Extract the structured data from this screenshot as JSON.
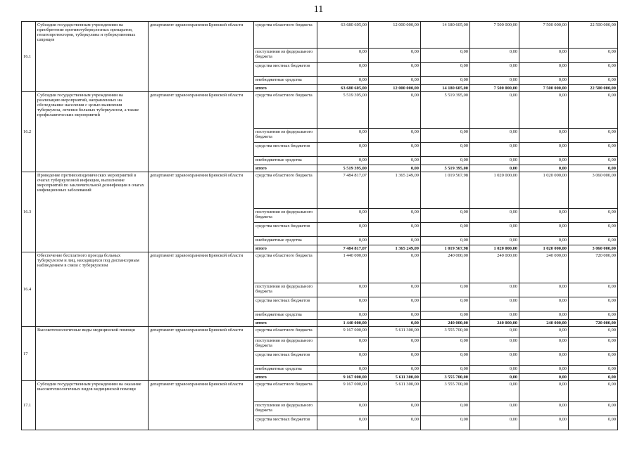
{
  "page_number": "11",
  "table": {
    "rows": [
      {
        "num": "16.1",
        "name": "Субсидии государственным учреждениям на приобретение противотуберкулезных препаратов, гепатопротекторов, туберкулина и туберкулиновых шприцев",
        "org": "департамент здравоохранения Брянской области",
        "lines": [
          {
            "source": "средства областного бюджета",
            "values": [
              "63 680 605,00",
              "12 000 000,00",
              "14 180 605,00",
              "7 500 000,00",
              "7 500 000,00",
              "22 500 000,00"
            ]
          },
          {
            "source": "поступления из федерального бюджета",
            "values": [
              "0,00",
              "0,00",
              "0,00",
              "0,00",
              "0,00",
              "0,00"
            ]
          },
          {
            "source": "средства местных бюджетов",
            "values": [
              "0,00",
              "0,00",
              "0,00",
              "0,00",
              "0,00",
              "0,00"
            ]
          },
          {
            "source": "внебюджетные средства",
            "values": [
              "0,00",
              "0,00",
              "0,00",
              "0,00",
              "0,00",
              "0,00"
            ]
          },
          {
            "source": "итого",
            "values": [
              "63 680 605,00",
              "12 000 000,00",
              "14 180 605,00",
              "7 500 000,00",
              "7 500 000,00",
              "22 500 000,00"
            ]
          }
        ]
      },
      {
        "num": "16.2",
        "name": "Субсидии государственным учреждениям на реализацию мероприятий, направленных на обследование населения с целью выявления туберкулеза, лечения больных туберкулезом, а также профилактических мероприятий",
        "org": "департамент здравоохранения Брянской области",
        "lines": [
          {
            "source": "средства областного бюджета",
            "values": [
              "5 519 395,00",
              "0,00",
              "5 519 395,00",
              "0,00",
              "0,00",
              "0,00"
            ]
          },
          {
            "source": "поступления из федерального бюджета",
            "values": [
              "0,00",
              "0,00",
              "0,00",
              "0,00",
              "0,00",
              "0,00"
            ]
          },
          {
            "source": "средства местных бюджетов",
            "values": [
              "0,00",
              "0,00",
              "0,00",
              "0,00",
              "0,00",
              "0,00"
            ]
          },
          {
            "source": "внебюджетные средства",
            "values": [
              "0,00",
              "0,00",
              "0,00",
              "0,00",
              "0,00",
              "0,00"
            ]
          },
          {
            "source": "итого",
            "values": [
              "5 519 395,00",
              "0,00",
              "5 519 395,00",
              "0,00",
              "0,00",
              "0,00"
            ]
          }
        ]
      },
      {
        "num": "16.3",
        "name": "Проведение противоэпидемических мероприятий в очагах туберкулезной инфекции, выполнение мероприятий по заключительной дезинфекции в очагах инфекционных заболеваний",
        "org": "департамент здравоохранения Брянской области",
        "lines": [
          {
            "source": "средства областного бюджета",
            "values": [
              "7 484 817,07",
              "1 365 249,09",
              "1 019 567,98",
              "1 020 000,00",
              "1 020 000,00",
              "3 060 000,00"
            ]
          },
          {
            "source": "поступления из федерального бюджета",
            "values": [
              "0,00",
              "0,00",
              "0,00",
              "0,00",
              "0,00",
              "0,00"
            ]
          },
          {
            "source": "средства местных бюджетов",
            "values": [
              "0,00",
              "0,00",
              "0,00",
              "0,00",
              "0,00",
              "0,00"
            ]
          },
          {
            "source": "внебюджетные средства",
            "values": [
              "0,00",
              "0,00",
              "0,00",
              "0,00",
              "0,00",
              "0,00"
            ]
          },
          {
            "source": "итого",
            "values": [
              "7 484 817,07",
              "1 365 249,09",
              "1 019 567,98",
              "1 020 000,00",
              "1 020 000,00",
              "3 060 000,00"
            ]
          }
        ]
      },
      {
        "num": "16.4",
        "name": "Обеспечение бесплатного проезда больных туберкулезом и лиц, находящихся под диспансерным наблюдением в связи с туберкулезом",
        "org": "департамент здравоохранения Брянской области",
        "lines": [
          {
            "source": "средства областного бюджета",
            "values": [
              "1 440 000,00",
              "0,00",
              "240 000,00",
              "240 000,00",
              "240 000,00",
              "720 000,00"
            ]
          },
          {
            "source": "поступления из федерального бюджета",
            "values": [
              "0,00",
              "0,00",
              "0,00",
              "0,00",
              "0,00",
              "0,00"
            ]
          },
          {
            "source": "средства местных бюджетов",
            "values": [
              "0,00",
              "0,00",
              "0,00",
              "0,00",
              "0,00",
              "0,00"
            ]
          },
          {
            "source": "внебюджетные средства",
            "values": [
              "0,00",
              "0,00",
              "0,00",
              "0,00",
              "0,00",
              "0,00"
            ]
          },
          {
            "source": "итого",
            "values": [
              "1 440 000,00",
              "0,00",
              "240 000,00",
              "240 000,00",
              "240 000,00",
              "720 000,00"
            ]
          }
        ]
      },
      {
        "num": "17",
        "name": "Высокотехнологичные виды медицинской помощи",
        "org": "департамент здравоохранения Брянской области",
        "lines": [
          {
            "source": "средства областного бюджета",
            "values": [
              "9 167 000,00",
              "5 611 300,00",
              "3 555 700,00",
              "0,00",
              "0,00",
              "0,00"
            ]
          },
          {
            "source": "поступления из федерального бюджета",
            "values": [
              "0,00",
              "0,00",
              "0,00",
              "0,00",
              "0,00",
              "0,00"
            ]
          },
          {
            "source": "средства местных бюджетов",
            "values": [
              "0,00",
              "0,00",
              "0,00",
              "0,00",
              "0,00",
              "0,00"
            ]
          },
          {
            "source": "внебюджетные средства",
            "values": [
              "0,00",
              "0,00",
              "0,00",
              "0,00",
              "0,00",
              "0,00"
            ]
          },
          {
            "source": "итого",
            "values": [
              "9 167 000,00",
              "5 611 300,00",
              "3 555 700,00",
              "0,00",
              "0,00",
              "0,00"
            ]
          }
        ]
      },
      {
        "num": "17.1",
        "name": "Субсидии государственным учреждениям на оказание высокотехнологичных видов медицинской помощи",
        "org": "департамент здравоохранения Брянской области",
        "lines": [
          {
            "source": "средства областного бюджета",
            "values": [
              "9 167 000,00",
              "5 611 300,00",
              "3 555 700,00",
              "0,00",
              "0,00",
              "0,00"
            ]
          },
          {
            "source": "поступления из федерального бюджета",
            "values": [
              "0,00",
              "0,00",
              "0,00",
              "0,00",
              "0,00",
              "0,00"
            ]
          },
          {
            "source": "средства местных бюджетов",
            "values": [
              "0,00",
              "0,00",
              "0,00",
              "0,00",
              "0,00",
              "0,00"
            ]
          }
        ]
      }
    ]
  }
}
